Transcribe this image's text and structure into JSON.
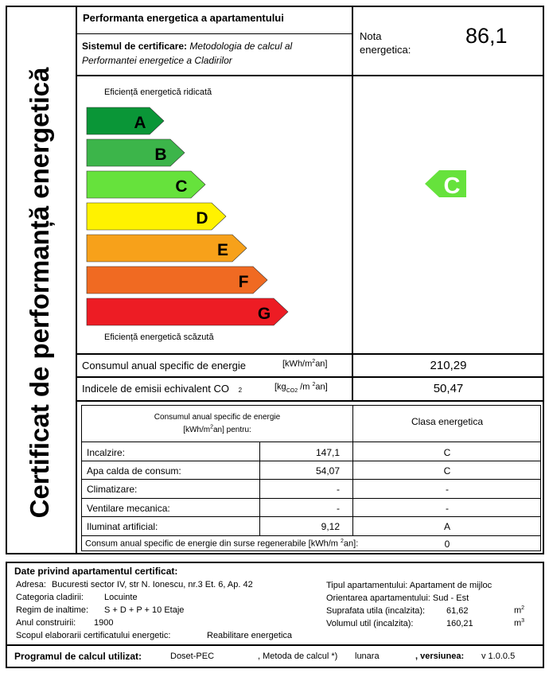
{
  "side_title": "Certificat de performanță energetică",
  "header": {
    "title": "Performanta energetica a apartamentului",
    "system_label": "Sistemul de certificare:",
    "system_value_line1": "Metodologia de calcul al",
    "system_value_line2": "Performantei energetice a Cladirilor",
    "nota_line1": "Nota",
    "nota_line2": "energetica:",
    "nota_value": "86,1"
  },
  "scale": {
    "top_label": "Eficiență energetică ridicată",
    "bottom_label": "Eficiență energetică scăzută",
    "classes": [
      {
        "letter": "A",
        "color": "#0a9637"
      },
      {
        "letter": "B",
        "color": "#3cb54a"
      },
      {
        "letter": "C",
        "color": "#66e23c"
      },
      {
        "letter": "D",
        "color": "#fff200"
      },
      {
        "letter": "E",
        "color": "#f7a11a"
      },
      {
        "letter": "F",
        "color": "#f06a22"
      },
      {
        "letter": "G",
        "color": "#ed1c24"
      }
    ],
    "current_class": "C",
    "current_color": "#66e23c"
  },
  "consum": {
    "label": "Consumul anual specific de energie",
    "unit": "[kWh/m²an]",
    "value": "210,29"
  },
  "emisii": {
    "label": "Indicele de emisii echivalent CO",
    "label_sub": "2",
    "unit": "[kgCO2/m²an]",
    "value": "50,47"
  },
  "breakdown": {
    "header_left_line1": "Consumul anual specific de energie",
    "header_left_line2": "[kWh/m²an] pentru:",
    "header_right": "Clasa energetica",
    "rows": [
      {
        "label": "Incalzire:",
        "value": "147,1",
        "clasa": "C"
      },
      {
        "label": "Apa calda de consum:",
        "value": "54,07",
        "clasa": "C"
      },
      {
        "label": "Climatizare:",
        "value": "-",
        "clasa": "-"
      },
      {
        "label": "Ventilare mecanica:",
        "value": "-",
        "clasa": "-"
      },
      {
        "label": "Iluminat artificial:",
        "value": "9,12",
        "clasa": "A"
      }
    ],
    "renewable_label": "Consum anual specific de energie din surse regenerabile [kWh/m² an]:",
    "renewable_value": "0"
  },
  "apartment": {
    "title": "Date privind apartamentul certificat:",
    "adresa_label": "Adresa:",
    "adresa_value": "Bucuresti sector IV, str N. Ionescu, nr.3 Et. 6, Ap. 42",
    "categoria_label": "Categoria cladirii:",
    "categoria_value": "Locuinte",
    "regim_label": "Regim de inaltime:",
    "regim_value": "S + D + P + 10 Etaje",
    "an_label": "Anul construirii:",
    "an_value": "1900",
    "scop_label": "Scopul elaborarii certificatului energetic:",
    "scop_value": "Reabilitare energetica",
    "tip_label": "Tipul apartamentului:",
    "tip_value": "Apartament de mijloc",
    "orientare_label": "Orientarea apartamentului:",
    "orientare_value": "Sud - Est",
    "suprafata_label": "Suprafata utila (incalzita):",
    "suprafata_value": "61,62",
    "suprafata_unit": "m",
    "suprafata_exp": "2",
    "volum_label": "Volumul util (incalzita):",
    "volum_value": "160,21",
    "volum_unit": "m",
    "volum_exp": "3"
  },
  "program": {
    "label": "Programul de calcul utilizat:",
    "value": "Doset-PEC",
    "metoda_label": ", Metoda de calcul *)",
    "metoda_value": "lunara",
    "versiune_label": ", versiunea:",
    "versiune_value": "v 1.0.0.5"
  }
}
